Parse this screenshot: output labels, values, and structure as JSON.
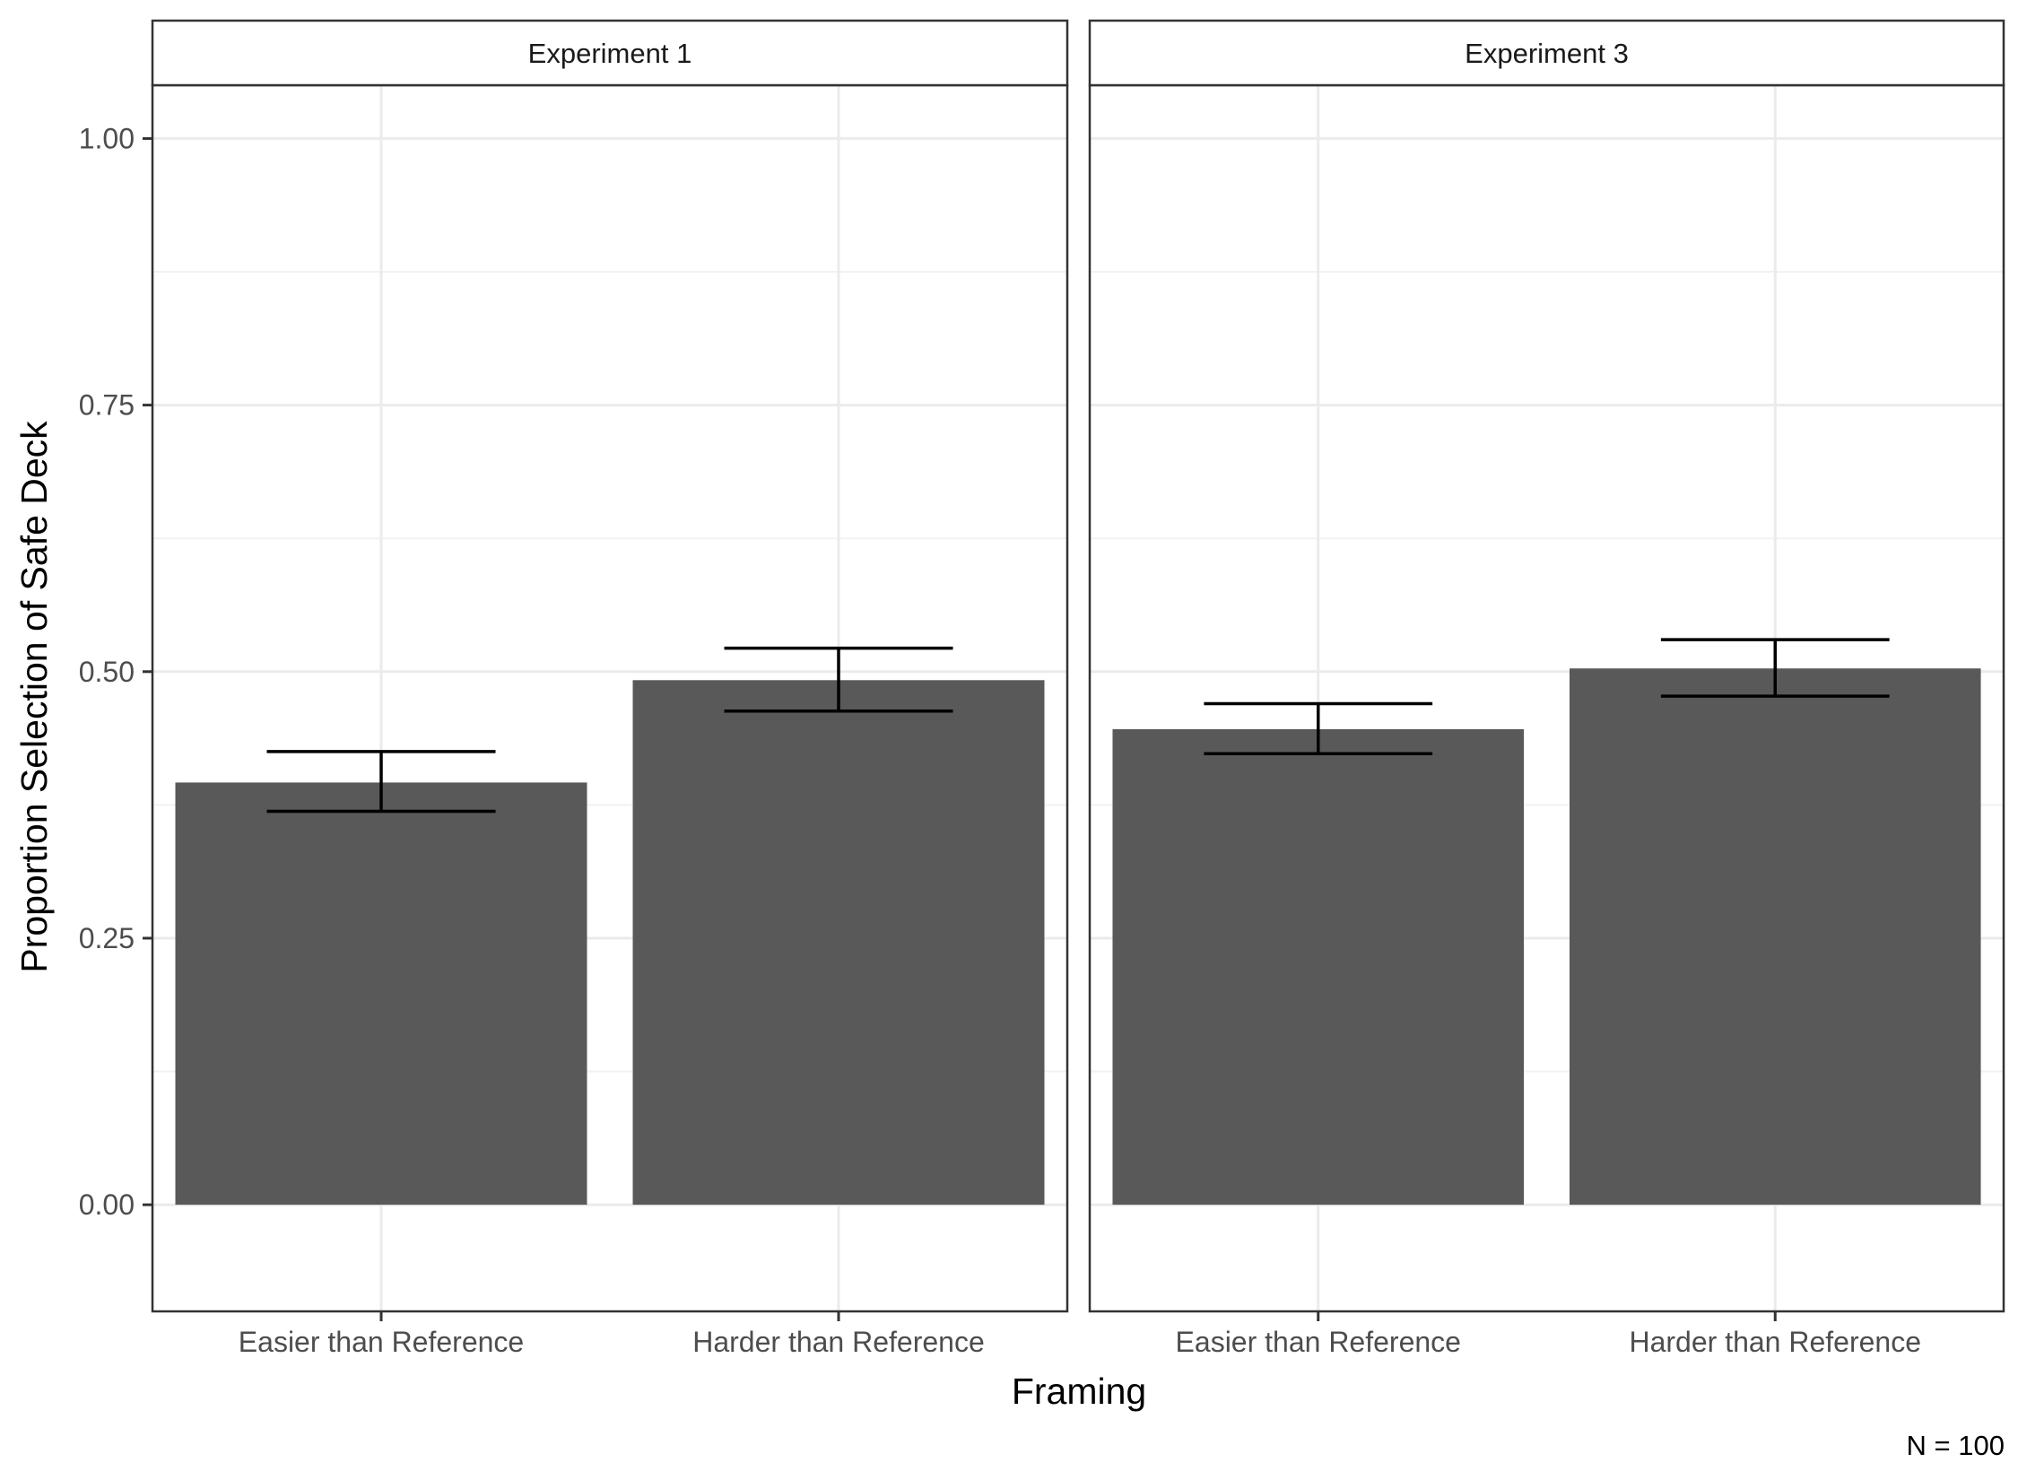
{
  "chart_data": {
    "type": "bar",
    "xlabel": "Framing",
    "ylabel": "Proportion Selection of Safe Deck",
    "caption": "N = 100",
    "ylim": [
      -0.1,
      1.05
    ],
    "yticks": [
      0,
      0.25,
      0.5,
      0.75,
      1
    ],
    "ytick_labels": [
      "0.00",
      "0.25",
      "0.50",
      "0.75",
      "1.00"
    ],
    "grid": true,
    "bar_color": "#595959",
    "categories": [
      "Easier than Reference",
      "Harder than Reference"
    ],
    "panels": [
      {
        "title": "Experiment 1",
        "values": [
          0.396,
          0.492
        ],
        "error_low": [
          0.369,
          0.463
        ],
        "error_high": [
          0.425,
          0.522
        ]
      },
      {
        "title": "Experiment 3",
        "values": [
          0.446,
          0.503
        ],
        "error_low": [
          0.423,
          0.477
        ],
        "error_high": [
          0.47,
          0.53
        ]
      }
    ]
  }
}
